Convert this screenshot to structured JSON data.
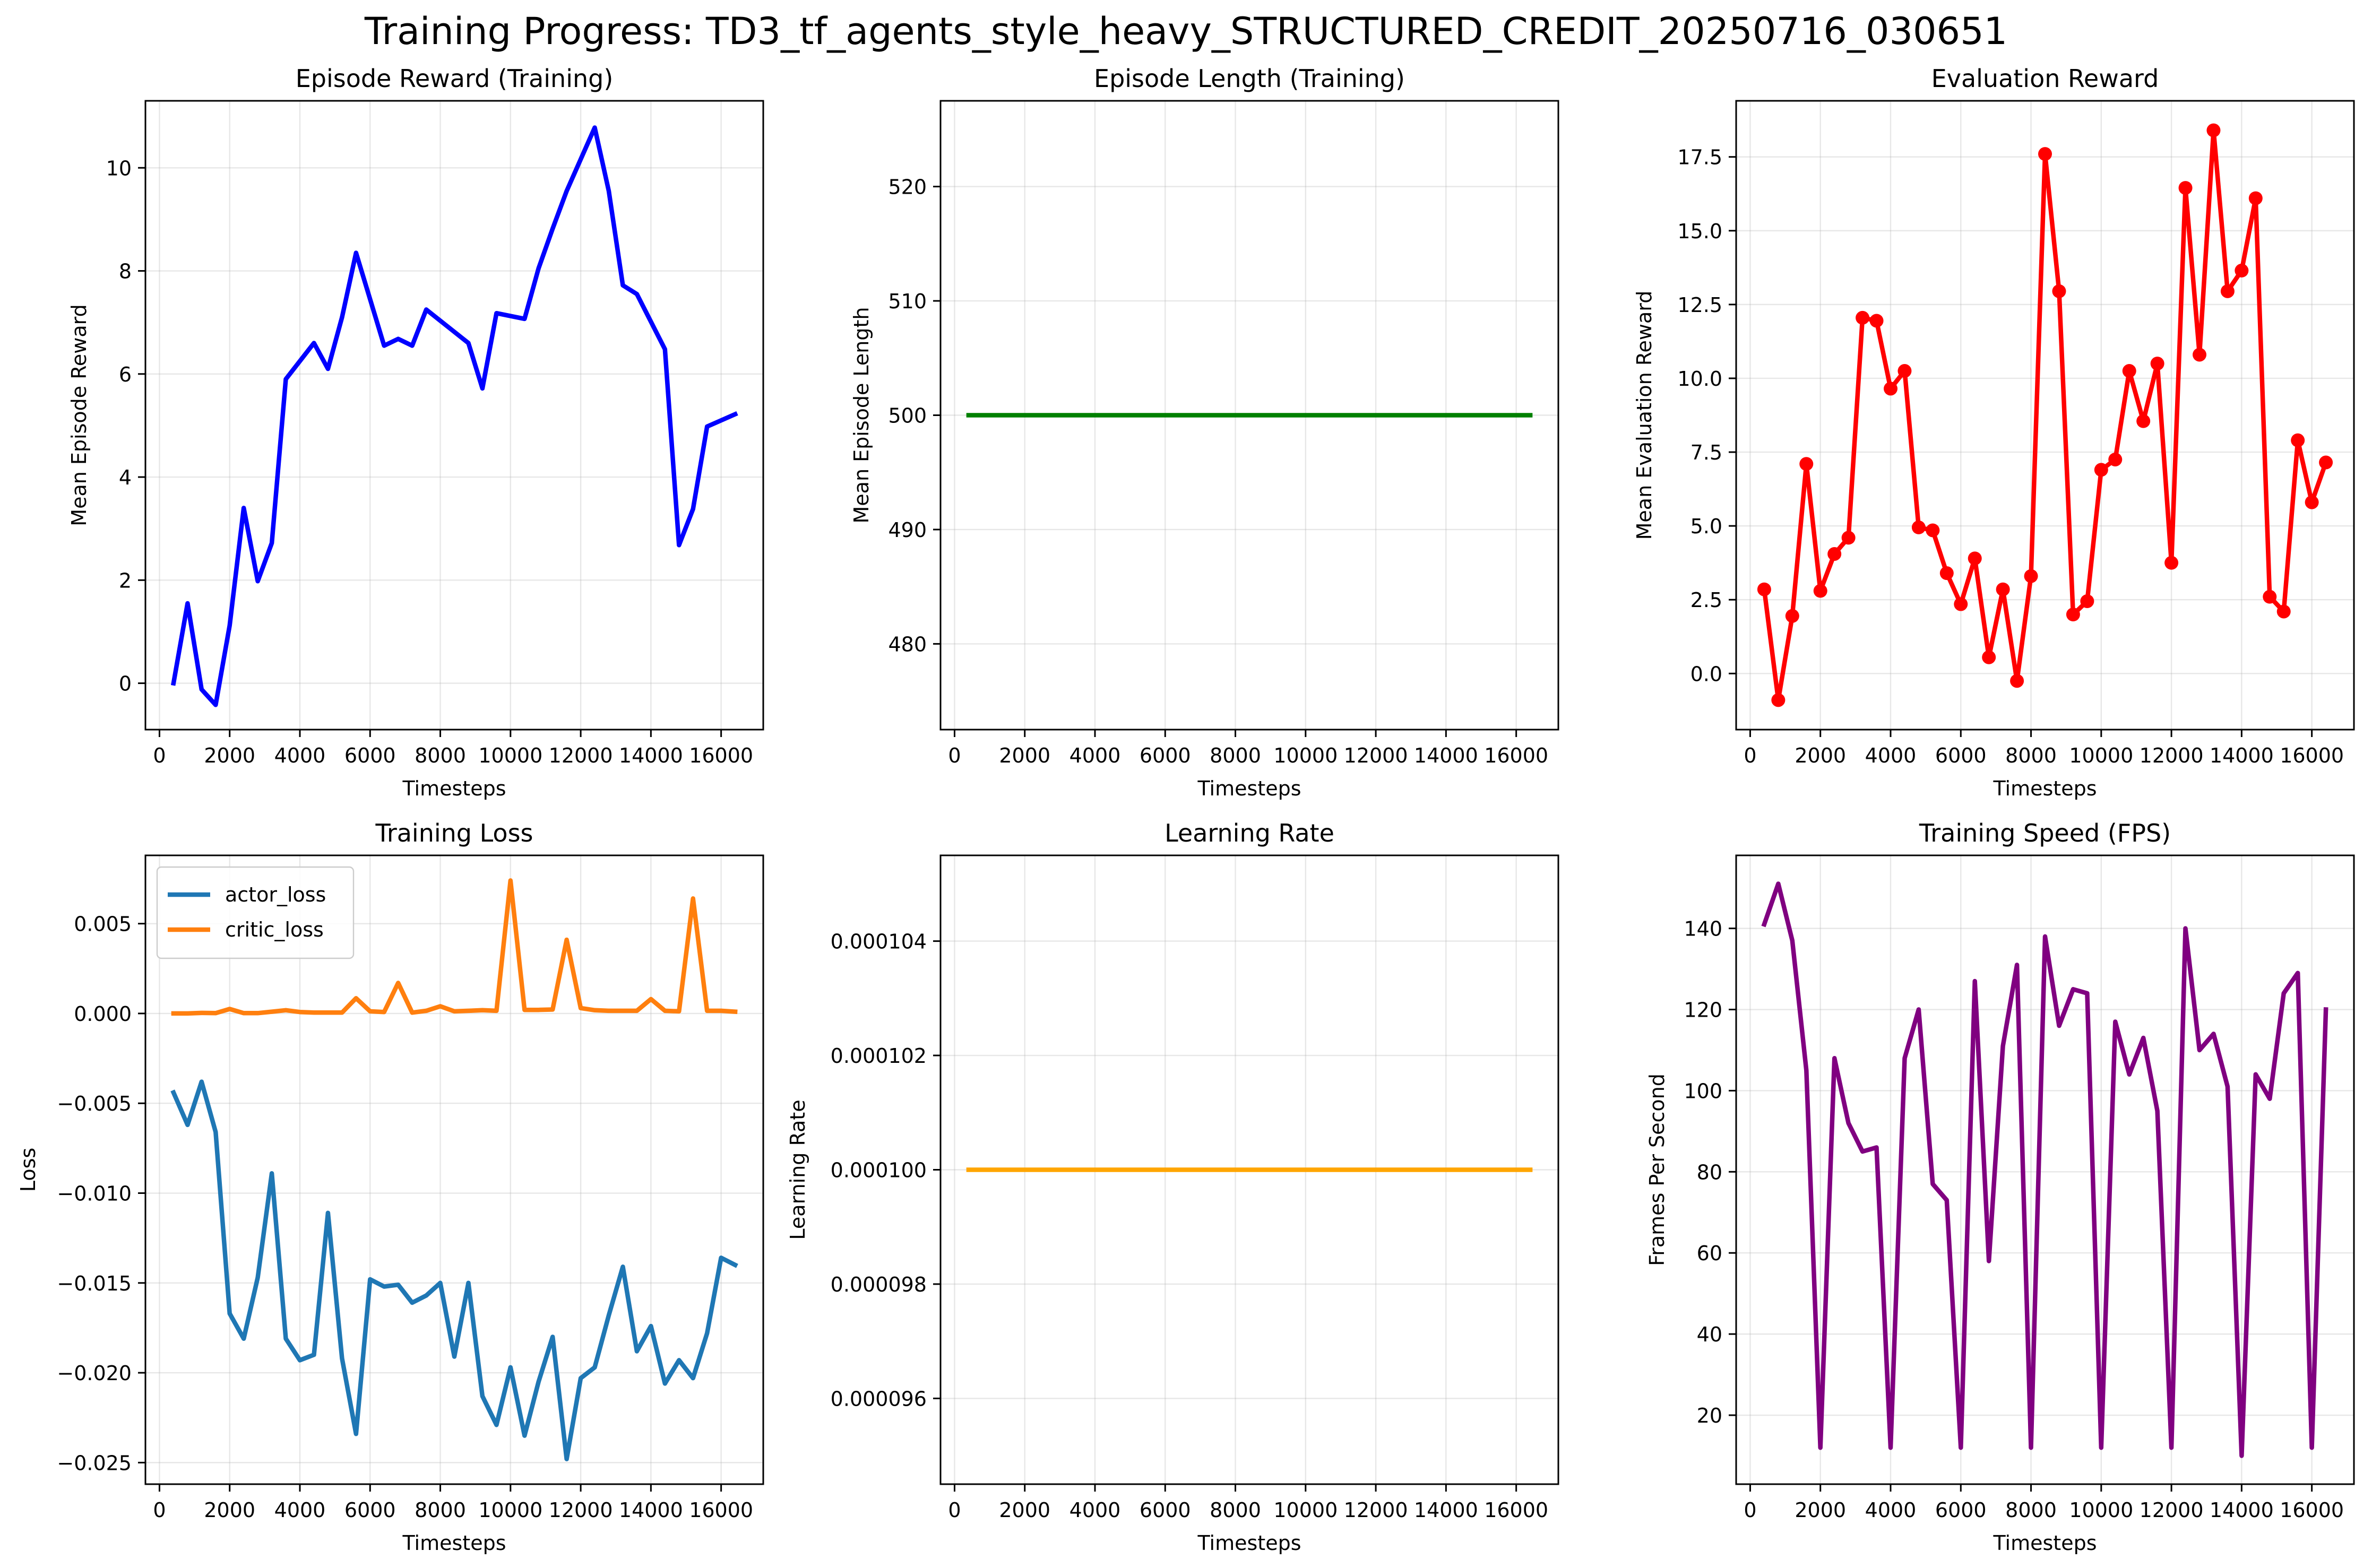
{
  "figure": {
    "title": "Training Progress: TD3_tf_agents_style_heavy_STRUCTURED_CREDIT_20250716_030651"
  },
  "chart_data": [
    {
      "type": "line",
      "title": "Episode Reward (Training)",
      "xlabel": "Timesteps",
      "ylabel": "Mean Episode Reward",
      "xlim": [
        -400,
        17200
      ],
      "ylim": [
        -0.9,
        11.3
      ],
      "xticks": [
        0,
        2000,
        4000,
        6000,
        8000,
        10000,
        12000,
        14000,
        16000
      ],
      "xtick_labels": [
        "0",
        "2000",
        "4000",
        "6000",
        "8000",
        "10000",
        "12000",
        "14000",
        "16000"
      ],
      "yticks": [
        0,
        2,
        4,
        6,
        8,
        10
      ],
      "ytick_labels": [
        "0",
        "2",
        "4",
        "6",
        "8",
        "10"
      ],
      "grid": true,
      "series": [
        {
          "color": "#0000ff",
          "markers": false,
          "x": [
            400,
            800,
            1200,
            1600,
            2000,
            2400,
            2800,
            3200,
            3600,
            4400,
            4800,
            5200,
            5600,
            6000,
            6400,
            6800,
            7200,
            7600,
            8800,
            9200,
            9600,
            10400,
            10800,
            11200,
            11600,
            12400,
            12800,
            13200,
            13600,
            14400,
            14800,
            15200,
            15600,
            16400
          ],
          "y": [
            0.0,
            1.55,
            -0.12,
            -0.42,
            1.12,
            3.4,
            1.98,
            2.72,
            5.9,
            6.6,
            6.1,
            7.1,
            8.35,
            7.45,
            6.55,
            6.68,
            6.55,
            7.25,
            6.6,
            5.72,
            7.18,
            7.07,
            8.05,
            8.82,
            9.55,
            10.78,
            9.55,
            7.72,
            7.55,
            6.48,
            2.68,
            3.38,
            4.98,
            5.22
          ]
        }
      ]
    },
    {
      "type": "line",
      "title": "Episode Length (Training)",
      "xlabel": "Timesteps",
      "ylabel": "Mean Episode Length",
      "xlim": [
        -400,
        17200
      ],
      "ylim": [
        472.5,
        527.5
      ],
      "xticks": [
        0,
        2000,
        4000,
        6000,
        8000,
        10000,
        12000,
        14000,
        16000
      ],
      "xtick_labels": [
        "0",
        "2000",
        "4000",
        "6000",
        "8000",
        "10000",
        "12000",
        "14000",
        "16000"
      ],
      "yticks": [
        480,
        490,
        500,
        510,
        520
      ],
      "ytick_labels": [
        "480",
        "490",
        "500",
        "510",
        "520"
      ],
      "grid": true,
      "series": [
        {
          "color": "#008000",
          "markers": false,
          "x": [
            400,
            16400
          ],
          "y": [
            500,
            500
          ]
        }
      ]
    },
    {
      "type": "line",
      "title": "Evaluation Reward",
      "xlabel": "Timesteps",
      "ylabel": "Mean Evaluation Reward",
      "xlim": [
        -400,
        17200
      ],
      "ylim": [
        -1.9,
        19.4
      ],
      "xticks": [
        0,
        2000,
        4000,
        6000,
        8000,
        10000,
        12000,
        14000,
        16000
      ],
      "xtick_labels": [
        "0",
        "2000",
        "4000",
        "6000",
        "8000",
        "10000",
        "12000",
        "14000",
        "16000"
      ],
      "yticks": [
        0,
        2.5,
        5,
        7.5,
        10,
        12.5,
        15,
        17.5
      ],
      "ytick_labels": [
        "0.0",
        "2.5",
        "5.0",
        "7.5",
        "10.0",
        "12.5",
        "15.0",
        "17.5"
      ],
      "grid": true,
      "series": [
        {
          "color": "#ff0000",
          "markers": true,
          "x": [
            400,
            800,
            1200,
            1600,
            2000,
            2400,
            2800,
            3200,
            3600,
            4000,
            4400,
            4800,
            5200,
            5600,
            6000,
            6400,
            6800,
            7200,
            7600,
            8000,
            8400,
            8800,
            9200,
            9600,
            10000,
            10400,
            10800,
            11200,
            11600,
            12000,
            12400,
            12800,
            13200,
            13600,
            14000,
            14400,
            14800,
            15200,
            15600,
            16000,
            16400
          ],
          "y": [
            2.85,
            -0.9,
            1.95,
            7.1,
            2.8,
            4.05,
            4.6,
            12.05,
            11.95,
            9.65,
            10.25,
            4.95,
            4.85,
            3.4,
            2.35,
            3.9,
            0.55,
            2.85,
            -0.25,
            3.3,
            17.6,
            12.95,
            2.0,
            2.45,
            6.9,
            7.25,
            10.25,
            8.55,
            10.5,
            3.75,
            16.45,
            10.8,
            18.4,
            12.95,
            13.65,
            16.1,
            2.6,
            2.1,
            7.9,
            5.8,
            7.15
          ]
        }
      ]
    },
    {
      "type": "line",
      "title": "Training Loss",
      "xlabel": "Timesteps",
      "ylabel": "Loss",
      "xlim": [
        -400,
        17200
      ],
      "ylim": [
        -0.0262,
        0.0088
      ],
      "xticks": [
        0,
        2000,
        4000,
        6000,
        8000,
        10000,
        12000,
        14000,
        16000
      ],
      "xtick_labels": [
        "0",
        "2000",
        "4000",
        "6000",
        "8000",
        "10000",
        "12000",
        "14000",
        "16000"
      ],
      "yticks": [
        -0.025,
        -0.02,
        -0.015,
        -0.01,
        -0.005,
        0,
        0.005
      ],
      "ytick_labels": [
        "−0.025",
        "−0.020",
        "−0.015",
        "−0.010",
        "−0.005",
        "0.000",
        "0.005"
      ],
      "grid": true,
      "legend": "upper-left",
      "series": [
        {
          "name": "actor_loss",
          "color": "#1f77b4",
          "markers": false,
          "x": [
            400,
            800,
            1200,
            1600,
            2000,
            2400,
            2800,
            3200,
            3600,
            4000,
            4400,
            4800,
            5200,
            5600,
            6000,
            6400,
            6800,
            7200,
            7600,
            8000,
            8400,
            8800,
            9200,
            9600,
            10000,
            10400,
            10800,
            11200,
            11600,
            12000,
            12400,
            12800,
            13200,
            13600,
            14000,
            14400,
            14800,
            15200,
            15600,
            16000,
            16400
          ],
          "y": [
            -0.0044,
            -0.0062,
            -0.0038,
            -0.0066,
            -0.0167,
            -0.0181,
            -0.0147,
            -0.0089,
            -0.0181,
            -0.0193,
            -0.019,
            -0.0111,
            -0.0192,
            -0.0234,
            -0.0148,
            -0.0152,
            -0.0151,
            -0.0161,
            -0.0157,
            -0.015,
            -0.0191,
            -0.015,
            -0.0213,
            -0.0229,
            -0.0197,
            -0.0235,
            -0.0205,
            -0.018,
            -0.0248,
            -0.0203,
            -0.0197,
            -0.0168,
            -0.0141,
            -0.0188,
            -0.0174,
            -0.0206,
            -0.0193,
            -0.0203,
            -0.0178,
            -0.0136,
            -0.014
          ]
        },
        {
          "name": "critic_loss",
          "color": "#ff7f0e",
          "markers": false,
          "x": [
            400,
            800,
            1200,
            1600,
            2000,
            2400,
            2800,
            3200,
            3600,
            4000,
            4400,
            4800,
            5200,
            5600,
            6000,
            6400,
            6800,
            7200,
            7600,
            8000,
            8400,
            8800,
            9200,
            9600,
            10000,
            10400,
            10800,
            11200,
            11600,
            12000,
            12400,
            12800,
            13200,
            13600,
            14000,
            14400,
            14800,
            15200,
            15600,
            16000,
            16400
          ],
          "y": [
            0.0,
            0.0,
            3e-05,
            2e-05,
            0.00025,
            2e-05,
            2e-05,
            0.0001,
            0.00018,
            8e-05,
            5e-05,
            5e-05,
            5e-05,
            0.00085,
            0.00012,
            8e-05,
            0.0017,
            5e-05,
            0.00015,
            0.0004,
            0.00012,
            0.00015,
            0.00018,
            0.00015,
            0.0074,
            0.0002,
            0.0002,
            0.00022,
            0.0041,
            0.0003,
            0.00018,
            0.00015,
            0.00015,
            0.00015,
            0.0008,
            0.00015,
            0.00012,
            0.0064,
            0.00015,
            0.00015,
            0.0001
          ]
        }
      ]
    },
    {
      "type": "line",
      "title": "Learning Rate",
      "xlabel": "Timesteps",
      "ylabel": "Learning Rate",
      "xlim": [
        -400,
        17200
      ],
      "ylim": [
        9.45e-05,
        0.0001055
      ],
      "xticks": [
        0,
        2000,
        4000,
        6000,
        8000,
        10000,
        12000,
        14000,
        16000
      ],
      "xtick_labels": [
        "0",
        "2000",
        "4000",
        "6000",
        "8000",
        "10000",
        "12000",
        "14000",
        "16000"
      ],
      "yticks": [
        9.6e-05,
        9.8e-05,
        0.0001,
        0.000102,
        0.000104
      ],
      "ytick_labels": [
        "0.000096",
        "0.000098",
        "0.000100",
        "0.000102",
        "0.000104"
      ],
      "grid": true,
      "series": [
        {
          "color": "#ffa500",
          "markers": false,
          "x": [
            400,
            16400
          ],
          "y": [
            0.0001,
            0.0001
          ]
        }
      ]
    },
    {
      "type": "line",
      "title": "Training Speed (FPS)",
      "xlabel": "Timesteps",
      "ylabel": "Frames Per Second",
      "xlim": [
        -400,
        17200
      ],
      "ylim": [
        3,
        158
      ],
      "xticks": [
        0,
        2000,
        4000,
        6000,
        8000,
        10000,
        12000,
        14000,
        16000
      ],
      "xtick_labels": [
        "0",
        "2000",
        "4000",
        "6000",
        "8000",
        "10000",
        "12000",
        "14000",
        "16000"
      ],
      "yticks": [
        20,
        40,
        60,
        80,
        100,
        120,
        140
      ],
      "ytick_labels": [
        "20",
        "40",
        "60",
        "80",
        "100",
        "120",
        "140"
      ],
      "grid": true,
      "series": [
        {
          "color": "#800080",
          "markers": false,
          "x": [
            400,
            800,
            1200,
            1600,
            2000,
            2400,
            2800,
            3200,
            3600,
            4000,
            4400,
            4800,
            5200,
            5600,
            6000,
            6400,
            6800,
            7200,
            7600,
            8000,
            8400,
            8800,
            9200,
            9600,
            10000,
            10400,
            10800,
            11200,
            11600,
            12000,
            12400,
            12800,
            13200,
            13600,
            14000,
            14400,
            14800,
            15200,
            15600,
            16000,
            16400
          ],
          "y": [
            141,
            151,
            137,
            105,
            12,
            108,
            92,
            85,
            86,
            12,
            108,
            120,
            77,
            73,
            12,
            127,
            58,
            111,
            131,
            12,
            138,
            116,
            125,
            124,
            12,
            117,
            104,
            113,
            95,
            12,
            140,
            110,
            114,
            101,
            10,
            104,
            98,
            124,
            129,
            12,
            120
          ]
        }
      ]
    }
  ]
}
